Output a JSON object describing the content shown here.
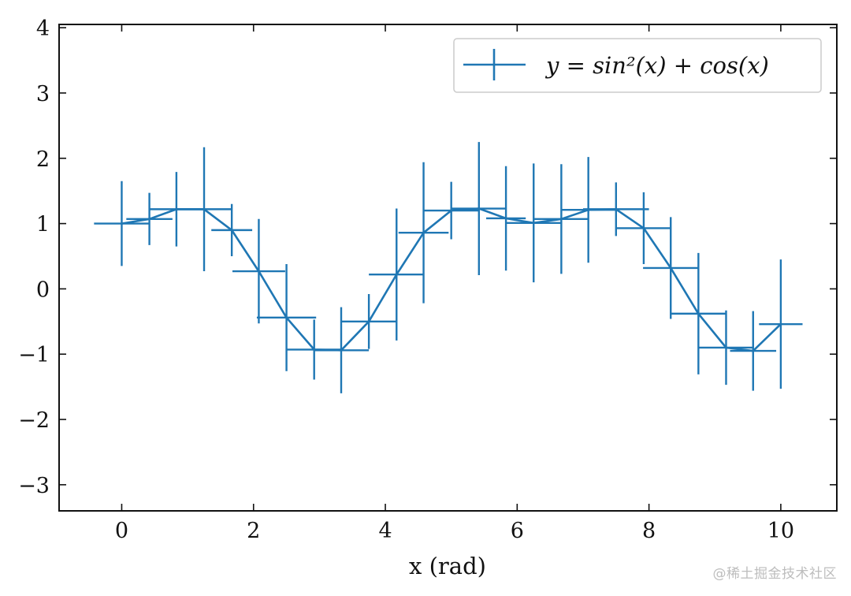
{
  "chart_data": {
    "type": "line",
    "style": "errorbar",
    "x": [
      0,
      0.42,
      0.83,
      1.25,
      1.67,
      2.08,
      2.5,
      2.92,
      3.33,
      3.75,
      4.17,
      4.58,
      5.0,
      5.42,
      5.83,
      6.25,
      6.67,
      7.08,
      7.5,
      7.92,
      8.33,
      8.75,
      9.17,
      9.58,
      10.0
    ],
    "series": [
      {
        "name": "y = sin²(x) + cos(x)",
        "color": "#1f77b4",
        "y": [
          1.0,
          1.07,
          1.22,
          1.22,
          0.9,
          0.27,
          -0.44,
          -0.93,
          -0.94,
          -0.5,
          0.22,
          0.86,
          1.2,
          1.23,
          1.08,
          1.01,
          1.07,
          1.21,
          1.22,
          0.93,
          0.32,
          -0.38,
          -0.9,
          -0.95,
          -0.54
        ],
        "yerr": [
          0.65,
          0.4,
          0.57,
          0.95,
          0.4,
          0.8,
          0.82,
          0.46,
          0.66,
          0.42,
          1.01,
          1.08,
          0.44,
          1.02,
          0.8,
          0.91,
          0.84,
          0.81,
          0.41,
          0.55,
          0.78,
          0.93,
          0.57,
          0.61,
          0.99
        ],
        "xerr_left": [
          0.42,
          0.0,
          0.0,
          0.0,
          0.0,
          0.0,
          0.0,
          0.0,
          0.0,
          0.0,
          0.0,
          0.0,
          0.0,
          0.0,
          0.0,
          0.0,
          0.0,
          0.0,
          0.0,
          0.0,
          0.0,
          0.0,
          0.0,
          0.0,
          0.0
        ],
        "xerr_right": [
          0.0,
          0.33,
          0.0,
          0.0,
          0.0,
          0.0,
          0.0,
          0.0,
          0.0,
          0.0,
          0.0,
          0.0,
          0.0,
          0.0,
          0.0,
          0.0,
          0.0,
          0.0,
          0.0,
          0.0,
          0.0,
          0.0,
          0.0,
          0.0,
          0.0
        ],
        "xerr": [
          0.42,
          0.35,
          0.4,
          0.42,
          0.31,
          0.4,
          0.45,
          0.42,
          0.42,
          0.42,
          0.42,
          0.38,
          0.42,
          0.42,
          0.3,
          0.42,
          0.42,
          0.42,
          0.5,
          0.42,
          0.42,
          0.42,
          0.42,
          0.35,
          0.33
        ]
      }
    ],
    "title": "",
    "xlabel": "x (rad)",
    "ylabel": "",
    "xlim": [
      -0.95,
      10.85
    ],
    "ylim": [
      -3.4,
      4.05
    ],
    "xticks": [
      0,
      2,
      4,
      6,
      8,
      10
    ],
    "yticks": [
      -3,
      -2,
      -1,
      0,
      1,
      2,
      3,
      4
    ],
    "xtick_labels": [
      "0",
      "2",
      "4",
      "6",
      "8",
      "10"
    ],
    "ytick_labels": [
      "−3",
      "−2",
      "−1",
      "0",
      "1",
      "2",
      "3",
      "4"
    ],
    "legend": {
      "placement": "top-right",
      "entries": [
        "y = sin²(x) + cos(x)"
      ]
    },
    "grid": false,
    "tick_direction": "in"
  },
  "watermark": "@稀土掘金技术社区"
}
